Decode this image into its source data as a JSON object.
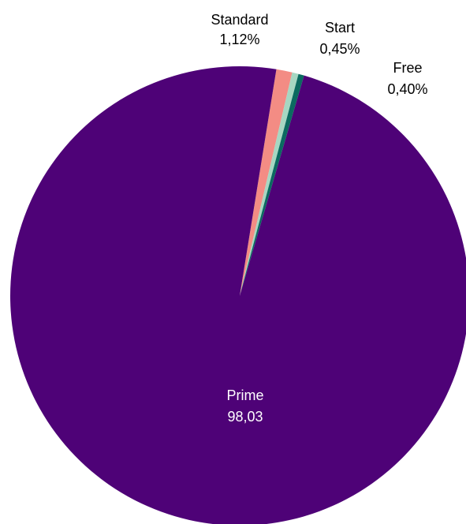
{
  "chart_data": {
    "type": "pie",
    "title": "",
    "slices": [
      {
        "name": "Prime",
        "value": 98.03,
        "display": "98,03",
        "color": "#4e0277",
        "label_color": "#ffffff"
      },
      {
        "name": "Standard",
        "value": 1.12,
        "display": "1,12%",
        "color": "#f38c84",
        "label_color": "#000000"
      },
      {
        "name": "Start",
        "value": 0.45,
        "display": "0,45%",
        "color": "#a6d7c2",
        "label_color": "#000000"
      },
      {
        "name": "Free",
        "value": 0.4,
        "display": "0,40%",
        "color": "#0b6a60",
        "label_color": "#000000"
      }
    ],
    "legend": "none",
    "grid": false
  }
}
